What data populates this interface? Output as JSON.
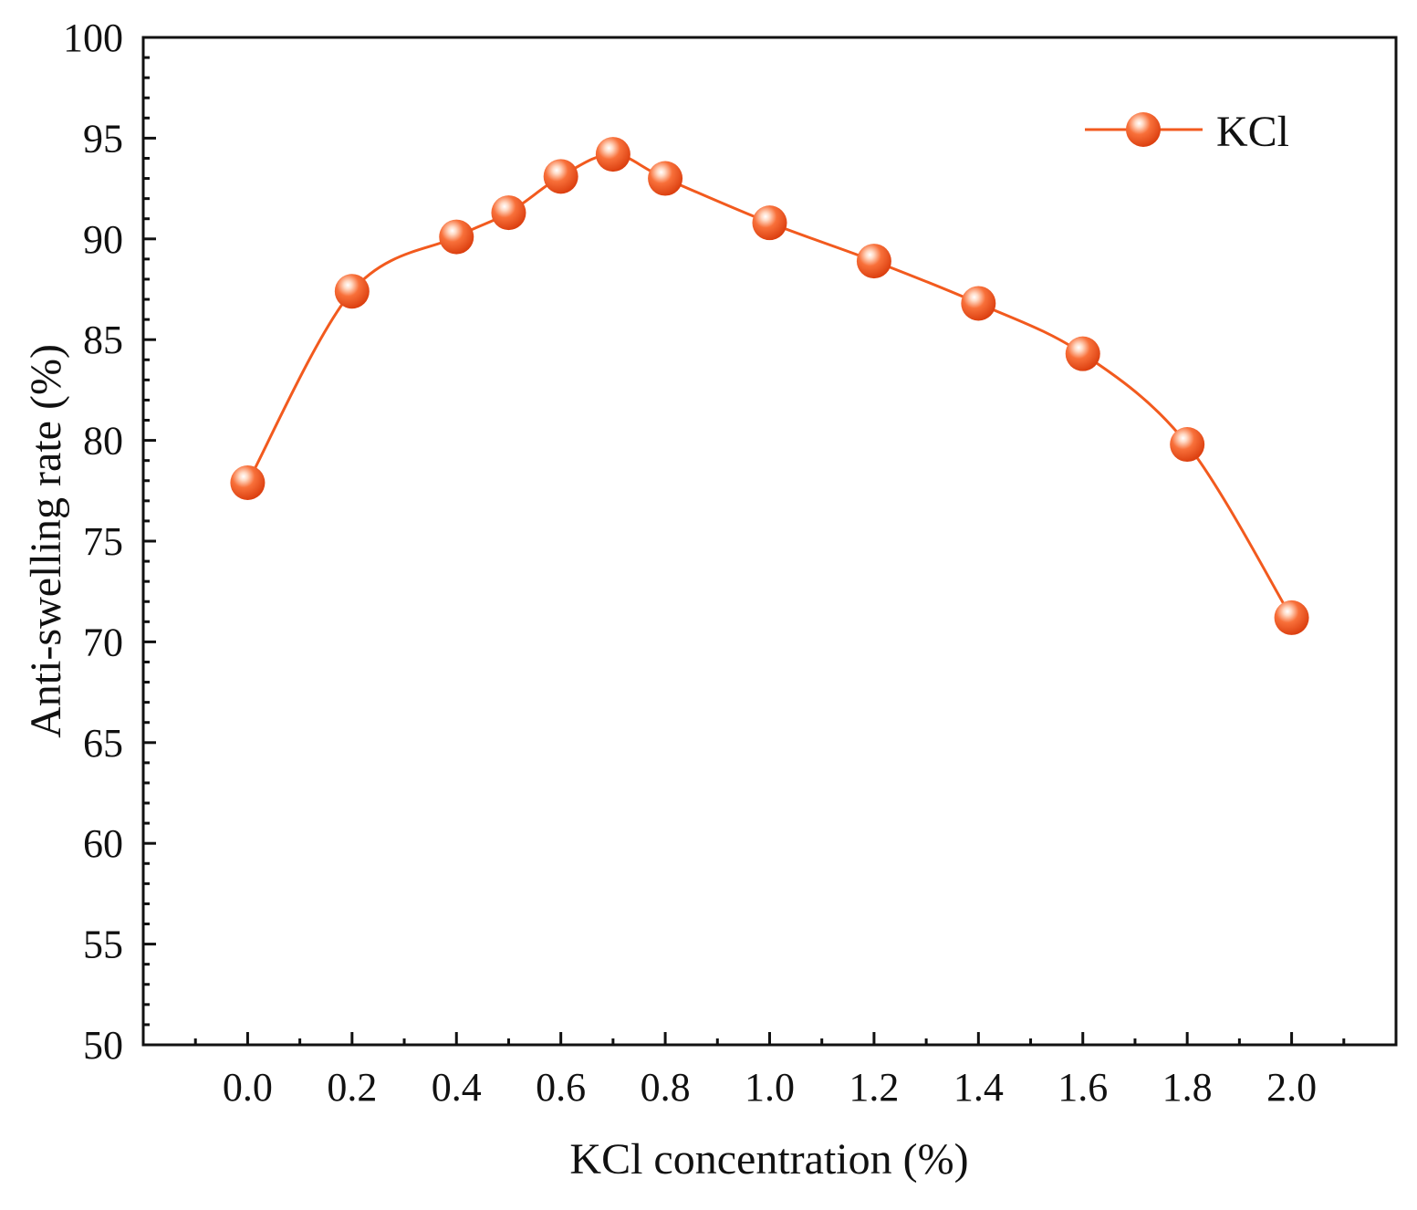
{
  "chart_data": {
    "type": "line",
    "title": "",
    "xlabel": "KCl concentration (%)",
    "ylabel": "Anti-swelling rate (%)",
    "xlim": [
      -0.2,
      2.2
    ],
    "ylim": [
      50,
      100
    ],
    "x_ticks": [
      "0.0",
      "0.2",
      "0.4",
      "0.6",
      "0.8",
      "1.0",
      "1.2",
      "1.4",
      "1.6",
      "1.8",
      "2.0"
    ],
    "y_ticks": [
      "50",
      "55",
      "60",
      "65",
      "70",
      "75",
      "80",
      "85",
      "90",
      "95",
      "100"
    ],
    "legend_position": "top-right",
    "grid": false,
    "series": [
      {
        "name": "KCl",
        "color": "#f25a1e",
        "marker": "sphere",
        "smooth": true,
        "x": [
          0.0,
          0.2,
          0.4,
          0.5,
          0.6,
          0.7,
          0.8,
          1.0,
          1.2,
          1.4,
          1.6,
          1.8,
          2.0
        ],
        "y": [
          77.9,
          87.4,
          90.1,
          91.3,
          93.1,
          94.2,
          93.0,
          90.8,
          88.9,
          86.8,
          84.3,
          79.8,
          71.2
        ]
      }
    ]
  }
}
